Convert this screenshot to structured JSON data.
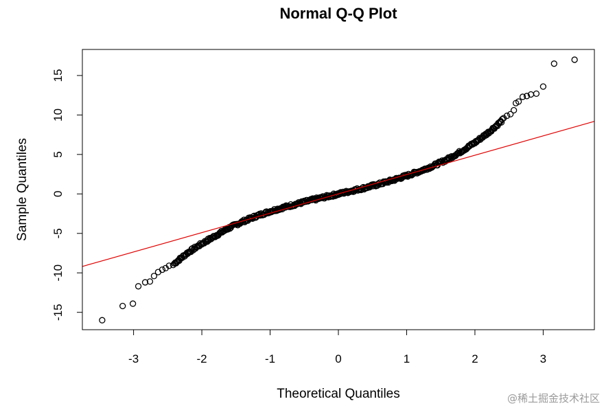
{
  "chart_data": {
    "type": "scatter",
    "title": "Normal Q-Q Plot",
    "xlabel": "Theoretical Quantiles",
    "ylabel": "Sample Quantiles",
    "xlim": [
      -3.75,
      3.75
    ],
    "ylim": [
      -17.2,
      18.3
    ],
    "x_ticks": [
      -3,
      -2,
      -1,
      0,
      1,
      2,
      3
    ],
    "y_ticks": [
      -15,
      -10,
      -5,
      0,
      5,
      10,
      15
    ],
    "grid": false,
    "legend": "none",
    "reference_line": {
      "intercept": 0,
      "slope": 2.45,
      "color": "#e00000"
    },
    "point_color": "#000000",
    "outlier_points": [
      {
        "x": -3.46,
        "y": -16.0
      },
      {
        "x": -3.16,
        "y": -14.2
      },
      {
        "x": -3.01,
        "y": -13.9
      },
      {
        "x": -2.93,
        "y": -11.7
      },
      {
        "x": -2.83,
        "y": -11.2
      },
      {
        "x": -2.76,
        "y": -11.1
      },
      {
        "x": -2.7,
        "y": -10.4
      },
      {
        "x": -2.64,
        "y": -9.9
      },
      {
        "x": -2.58,
        "y": -9.6
      },
      {
        "x": -2.53,
        "y": -9.4
      },
      {
        "x": -2.48,
        "y": -9.1
      },
      {
        "x": -2.42,
        "y": -9.0
      },
      {
        "x": 2.42,
        "y": 9.6
      },
      {
        "x": 2.47,
        "y": 9.9
      },
      {
        "x": 2.52,
        "y": 10.1
      },
      {
        "x": 2.57,
        "y": 10.6
      },
      {
        "x": 2.6,
        "y": 11.5
      },
      {
        "x": 2.64,
        "y": 11.7
      },
      {
        "x": 2.7,
        "y": 12.3
      },
      {
        "x": 2.76,
        "y": 12.4
      },
      {
        "x": 2.82,
        "y": 12.6
      },
      {
        "x": 2.9,
        "y": 12.7
      },
      {
        "x": 3.0,
        "y": 13.6
      },
      {
        "x": 3.16,
        "y": 16.5
      },
      {
        "x": 3.46,
        "y": 17.0
      }
    ],
    "body_curve": [
      {
        "x": -2.4,
        "y": -8.8
      },
      {
        "x": -2.2,
        "y": -7.4
      },
      {
        "x": -2.0,
        "y": -6.3
      },
      {
        "x": -1.8,
        "y": -5.3
      },
      {
        "x": -1.6,
        "y": -4.3
      },
      {
        "x": -1.4,
        "y": -3.5
      },
      {
        "x": -1.2,
        "y": -2.8
      },
      {
        "x": -1.0,
        "y": -2.2
      },
      {
        "x": -0.8,
        "y": -1.7
      },
      {
        "x": -0.6,
        "y": -1.25
      },
      {
        "x": -0.4,
        "y": -0.8
      },
      {
        "x": -0.2,
        "y": -0.4
      },
      {
        "x": 0.0,
        "y": 0.0
      },
      {
        "x": 0.2,
        "y": 0.4
      },
      {
        "x": 0.4,
        "y": 0.8
      },
      {
        "x": 0.6,
        "y": 1.25
      },
      {
        "x": 0.8,
        "y": 1.75
      },
      {
        "x": 1.0,
        "y": 2.3
      },
      {
        "x": 1.2,
        "y": 2.9
      },
      {
        "x": 1.4,
        "y": 3.6
      },
      {
        "x": 1.6,
        "y": 4.4
      },
      {
        "x": 1.8,
        "y": 5.4
      },
      {
        "x": 2.0,
        "y": 6.5
      },
      {
        "x": 2.2,
        "y": 7.8
      },
      {
        "x": 2.4,
        "y": 9.3
      }
    ]
  },
  "watermark": "@稀土掘金技术社区"
}
